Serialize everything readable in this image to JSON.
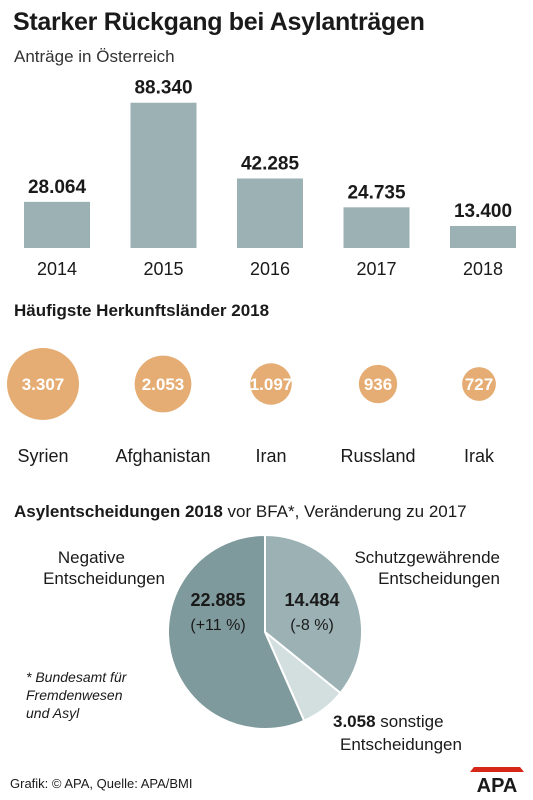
{
  "title": "Starker Rückgang bei Asylanträgen",
  "subtitle": "Anträge in Österreich",
  "chart_data": [
    {
      "type": "bar",
      "categories": [
        "2014",
        "2015",
        "2016",
        "2017",
        "2018"
      ],
      "values": [
        28064,
        88340,
        42285,
        24735,
        13400
      ],
      "value_labels": [
        "28.064",
        "88.340",
        "42.285",
        "24.735",
        "13.400"
      ],
      "ylim": [
        0,
        90000
      ],
      "color": "#9bb1b4"
    },
    {
      "type": "bubble",
      "title": "Häufigste Herkunftsländer 2018",
      "categories": [
        "Syrien",
        "Afghanistan",
        "Iran",
        "Russland",
        "Irak"
      ],
      "values": [
        3307,
        2053,
        1097,
        936,
        727
      ],
      "value_labels": [
        "3.307",
        "2.053",
        "1.097",
        "936",
        "727"
      ],
      "color": "#e5ad74"
    },
    {
      "type": "pie",
      "title_bold": "Asylentscheidungen 2018",
      "title_rest": " vor BFA*, Veränderung zu 2017",
      "slices": [
        {
          "name": [
            "Schutzgewährende",
            "Entscheidungen"
          ],
          "value": 14484,
          "value_label": "14.484",
          "change": "(-8 %)",
          "color": "#9bb1b4"
        },
        {
          "name": [
            "sonstige",
            "Entscheidungen"
          ],
          "value": 3058,
          "value_label": "3.058",
          "change": "",
          "color": "#d3dedf"
        },
        {
          "name": [
            "Negative",
            "Entscheidungen"
          ],
          "value": 22885,
          "value_label": "22.885",
          "change": "(+11 %)",
          "color": "#7f9a9c"
        }
      ]
    }
  ],
  "footnote": "* Bundesamt für\nFremdenwesen\nund Asyl",
  "source": "Grafik: © APA, Quelle: APA/BMI",
  "logo_text": "APA",
  "colors": {
    "bar": "#9bb1b4",
    "bubble": "#e5ad74",
    "pie_dark": "#7f9a9c",
    "pie_mid": "#9bb1b4",
    "pie_light": "#d3dedf",
    "logo_red": "#d62718"
  }
}
